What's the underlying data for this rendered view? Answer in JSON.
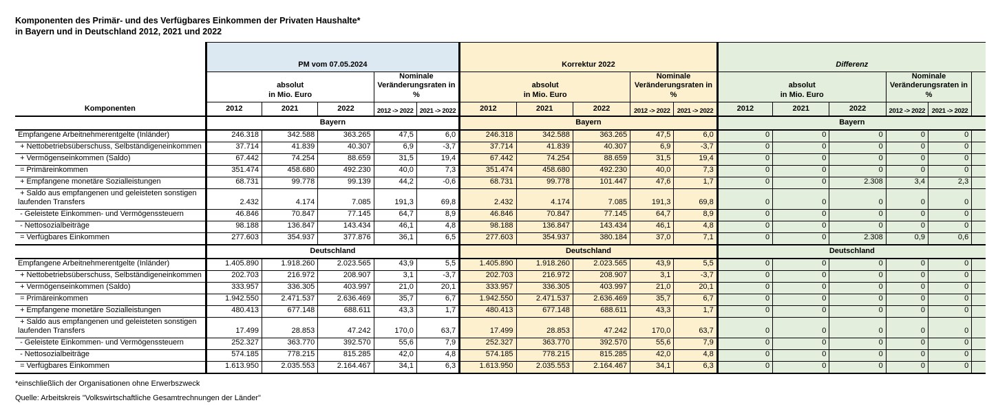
{
  "title": {
    "line1": "Komponenten des Primär- und des Verfügbares Einkommen der Privaten Haushalte*",
    "line2": "in Bayern und in Deutschland 2012, 2021 und 2022"
  },
  "table": {
    "corner_label": "Komponenten",
    "groups": [
      {
        "label": "PM vom 07.05.2024",
        "header_bg": "#DCE8F2",
        "body_bg": "#FFFFFF",
        "italic": false
      },
      {
        "label": "Korrektur 2022",
        "header_bg": "#FCF0CE",
        "body_bg": "#FCF0CE",
        "italic": false
      },
      {
        "label": "Differenz",
        "header_bg": "#E3EFDC",
        "body_bg": "#E3EFDC",
        "italic": true
      }
    ],
    "subheaders": {
      "absolut_line1": "absolut",
      "absolut_line2": "in Mio. Euro",
      "nominale_line1": "Nominale",
      "nominale_line2": "Veränderungsraten in %"
    },
    "year_columns": [
      "2012",
      "2021",
      "2022"
    ],
    "rate_columns": [
      "2012 -> 2022",
      "2021 -> 2022"
    ],
    "sections": [
      {
        "name": "Bayern",
        "rows": [
          {
            "label": "Empfangene Arbeitnehmerentgelte (Inländer)",
            "pm": [
              "246.318",
              "342.588",
              "363.265",
              "47,5",
              "6,0"
            ],
            "korrektur": [
              "246.318",
              "342.588",
              "363.265",
              "47,5",
              "6,0"
            ],
            "differenz": [
              "0",
              "0",
              "0",
              "0",
              "0"
            ]
          },
          {
            "label": " + Nettobetriebsüberschuss, Selbständigeneinkommen",
            "pm": [
              "37.714",
              "41.839",
              "40.307",
              "6,9",
              "-3,7"
            ],
            "korrektur": [
              "37.714",
              "41.839",
              "40.307",
              "6,9",
              "-3,7"
            ],
            "differenz": [
              "0",
              "0",
              "0",
              "0",
              "0"
            ]
          },
          {
            "label": " + Vermögenseinkommen (Saldo)",
            "pm": [
              "67.442",
              "74.254",
              "88.659",
              "31,5",
              "19,4"
            ],
            "korrektur": [
              "67.442",
              "74.254",
              "88.659",
              "31,5",
              "19,4"
            ],
            "differenz": [
              "0",
              "0",
              "0",
              "0",
              "0"
            ]
          },
          {
            "label": " = Primäreinkommen",
            "pm": [
              "351.474",
              "458.680",
              "492.230",
              "40,0",
              "7,3"
            ],
            "korrektur": [
              "351.474",
              "458.680",
              "492.230",
              "40,0",
              "7,3"
            ],
            "differenz": [
              "0",
              "0",
              "0",
              "0",
              "0"
            ]
          },
          {
            "label": " + Empfangene monetäre Sozialleistungen",
            "pm": [
              "68.731",
              "99.778",
              "99.139",
              "44,2",
              "-0,6"
            ],
            "korrektur": [
              "68.731",
              "99.778",
              "101.447",
              "47,6",
              "1,7"
            ],
            "differenz": [
              "0",
              "0",
              "2.308",
              "3,4",
              "2,3"
            ]
          },
          {
            "label": " + Saldo aus empfangenen und geleisteten sonstigen laufenden Transfers",
            "pm": [
              "2.432",
              "4.174",
              "7.085",
              "191,3",
              "69,8"
            ],
            "korrektur": [
              "2.432",
              "4.174",
              "7.085",
              "191,3",
              "69,8"
            ],
            "differenz": [
              "0",
              "0",
              "0",
              "0",
              "0"
            ]
          },
          {
            "label": " - Geleistete Einkommen- und Vermögenssteuern",
            "pm": [
              "46.846",
              "70.847",
              "77.145",
              "64,7",
              "8,9"
            ],
            "korrektur": [
              "46.846",
              "70.847",
              "77.145",
              "64,7",
              "8,9"
            ],
            "differenz": [
              "0",
              "0",
              "0",
              "0",
              "0"
            ]
          },
          {
            "label": " - Nettosozialbeiträge",
            "pm": [
              "98.188",
              "136.847",
              "143.434",
              "46,1",
              "4,8"
            ],
            "korrektur": [
              "98.188",
              "136.847",
              "143.434",
              "46,1",
              "4,8"
            ],
            "differenz": [
              "0",
              "0",
              "0",
              "0",
              "0"
            ]
          },
          {
            "label": " = Verfügbares Einkommen",
            "pm": [
              "277.603",
              "354.937",
              "377.876",
              "36,1",
              "6,5"
            ],
            "korrektur": [
              "277.603",
              "354.937",
              "380.184",
              "37,0",
              "7,1"
            ],
            "differenz": [
              "0",
              "0",
              "2.308",
              "0,9",
              "0,6"
            ]
          }
        ]
      },
      {
        "name": "Deutschland",
        "rows": [
          {
            "label": "Empfangene Arbeitnehmerentgelte (Inländer)",
            "pm": [
              "1.405.890",
              "1.918.260",
              "2.023.565",
              "43,9",
              "5,5"
            ],
            "korrektur": [
              "1.405.890",
              "1.918.260",
              "2.023.565",
              "43,9",
              "5,5"
            ],
            "differenz": [
              "0",
              "0",
              "0",
              "0",
              "0"
            ]
          },
          {
            "label": " + Nettobetriebsüberschuss, Selbständigeneinkommen",
            "pm": [
              "202.703",
              "216.972",
              "208.907",
              "3,1",
              "-3,7"
            ],
            "korrektur": [
              "202.703",
              "216.972",
              "208.907",
              "3,1",
              "-3,7"
            ],
            "differenz": [
              "0",
              "0",
              "0",
              "0",
              "0"
            ]
          },
          {
            "label": " + Vermögenseinkommen (Saldo)",
            "pm": [
              "333.957",
              "336.305",
              "403.997",
              "21,0",
              "20,1"
            ],
            "korrektur": [
              "333.957",
              "336.305",
              "403.997",
              "21,0",
              "20,1"
            ],
            "differenz": [
              "0",
              "0",
              "0",
              "0",
              "0"
            ]
          },
          {
            "label": " = Primäreinkommen",
            "pm": [
              "1.942.550",
              "2.471.537",
              "2.636.469",
              "35,7",
              "6,7"
            ],
            "korrektur": [
              "1.942.550",
              "2.471.537",
              "2.636.469",
              "35,7",
              "6,7"
            ],
            "differenz": [
              "0",
              "0",
              "0",
              "0",
              "0"
            ]
          },
          {
            "label": " + Empfangene monetäre Sozialleistungen",
            "pm": [
              "480.413",
              "677.148",
              "688.611",
              "43,3",
              "1,7"
            ],
            "korrektur": [
              "480.413",
              "677.148",
              "688.611",
              "43,3",
              "1,7"
            ],
            "differenz": [
              "0",
              "0",
              "0",
              "0",
              "0"
            ]
          },
          {
            "label": " + Saldo aus empfangenen und geleisteten sonstigen laufenden Transfers",
            "pm": [
              "17.499",
              "28.853",
              "47.242",
              "170,0",
              "63,7"
            ],
            "korrektur": [
              "17.499",
              "28.853",
              "47.242",
              "170,0",
              "63,7"
            ],
            "differenz": [
              "0",
              "0",
              "0",
              "0",
              "0"
            ]
          },
          {
            "label": " - Geleistete Einkommen- und Vermögenssteuern",
            "pm": [
              "252.327",
              "363.770",
              "392.570",
              "55,6",
              "7,9"
            ],
            "korrektur": [
              "252.327",
              "363.770",
              "392.570",
              "55,6",
              "7,9"
            ],
            "differenz": [
              "0",
              "0",
              "0",
              "0",
              "0"
            ]
          },
          {
            "label": " - Nettosozialbeiträge",
            "pm": [
              "574.185",
              "778.215",
              "815.285",
              "42,0",
              "4,8"
            ],
            "korrektur": [
              "574.185",
              "778.215",
              "815.285",
              "42,0",
              "4,8"
            ],
            "differenz": [
              "0",
              "0",
              "0",
              "0",
              "0"
            ]
          },
          {
            "label": " = Verfügbares Einkommen",
            "pm": [
              "1.613.950",
              "2.035.553",
              "2.164.467",
              "34,1",
              "6,3"
            ],
            "korrektur": [
              "1.613.950",
              "2.035.553",
              "2.164.467",
              "34,1",
              "6,3"
            ],
            "differenz": [
              "0",
              "0",
              "0",
              "0",
              "0"
            ]
          }
        ]
      }
    ]
  },
  "footnotes": {
    "note": "*einschließlich der Organisationen ohne Erwerbszweck",
    "source": "Quelle: Arbeitskreis \"Volkswirtschaftliche Gesamtrechnungen der Länder\""
  }
}
